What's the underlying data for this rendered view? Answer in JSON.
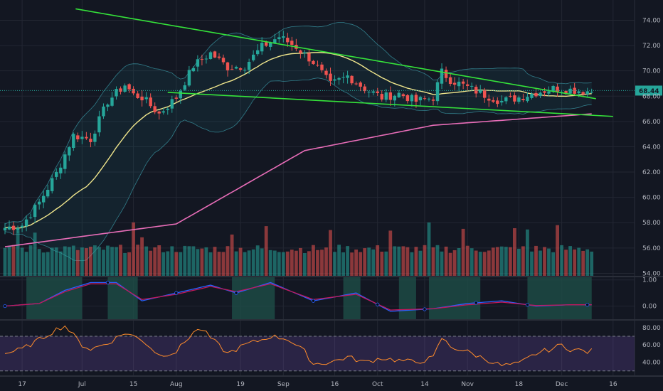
{
  "chart_data": [
    {
      "type": "candlestick",
      "panel": "price",
      "y_ticks": [
        "74.00",
        "72.00",
        "70.00",
        "68.00",
        "66.00",
        "64.00",
        "62.00",
        "60.00",
        "58.00",
        "56.00",
        "54.00"
      ],
      "y_tick_values": [
        74,
        72,
        70,
        68,
        66,
        64,
        62,
        60,
        58,
        56,
        54
      ],
      "ylim": [
        53.8,
        75.6
      ],
      "x_ticks": [
        "17",
        "Jul",
        "15",
        "Aug",
        "19",
        "Sep",
        "16",
        "Oct",
        "14",
        "Nov",
        "18",
        "Dec",
        "16"
      ],
      "x_tick_index": [
        4,
        18,
        30,
        40,
        55,
        65,
        77,
        87,
        98,
        108,
        120,
        130,
        142
      ],
      "last_price": "68.44",
      "last_price_value": 68.44,
      "grid": true,
      "ohlc_keypoints": {
        "index": [
          0,
          4,
          8,
          12,
          16,
          20,
          24,
          28,
          30,
          32,
          36,
          40,
          44,
          48,
          52,
          56,
          60,
          64,
          66,
          68,
          72,
          76,
          80,
          84,
          88,
          92,
          96,
          100,
          102,
          104,
          108,
          112,
          116,
          120,
          124,
          128,
          132,
          136
        ],
        "close": [
          57.6,
          57.8,
          59.6,
          61.9,
          64.9,
          64.6,
          67.6,
          68.9,
          68.1,
          67.9,
          66.6,
          67.9,
          70.4,
          71.4,
          70.3,
          70.4,
          71.9,
          72.7,
          72.3,
          71.9,
          70.7,
          68.9,
          69.6,
          68.6,
          67.9,
          68.2,
          67.6,
          67.9,
          69.9,
          69.3,
          68.7,
          68.1,
          67.6,
          67.9,
          68.3,
          68.6,
          68.5,
          68.4
        ]
      },
      "series": [
        {
          "name": "",
          "kind": "sma-short",
          "color": "#f0e68c"
        },
        {
          "name": "",
          "kind": "sma-long",
          "color": "#e86db8",
          "x": [
            0,
            40,
            70,
            100,
            137
          ],
          "y": [
            56.1,
            57.9,
            63.7,
            65.7,
            66.6
          ]
        }
      ],
      "annotations": {
        "trendline_color": "#35e33a",
        "upper_trendline": {
          "x": [
            16.5,
            138
          ],
          "y": [
            74.9,
            67.8
          ]
        },
        "lower_trendline": {
          "x": [
            38,
            142
          ],
          "y": [
            68.3,
            66.4
          ]
        }
      },
      "bollinger_color": "#3fa5b4"
    },
    {
      "type": "bar",
      "panel": "volume",
      "note_hidden": "",
      "colors": {
        "up": "#26a69a",
        "down": "#ef5350"
      }
    },
    {
      "type": "line",
      "panel": "oscillator",
      "y_ticks": [
        "1.00",
        "0.00"
      ],
      "y_tick_values": [
        1,
        0
      ],
      "ylim": [
        -0.5,
        1.1
      ],
      "series": [
        {
          "name": "",
          "color": "#2962ff",
          "x": [
            0,
            8,
            14,
            20,
            26,
            32,
            40,
            48,
            54,
            62,
            72,
            82,
            90,
            100,
            108,
            116,
            124,
            132,
            137
          ],
          "y": [
            0,
            0.1,
            0.6,
            0.9,
            0.9,
            0.2,
            0.5,
            0.8,
            0.5,
            0.9,
            0.2,
            0.5,
            -0.2,
            -0.1,
            0.1,
            0.2,
            0,
            0.05,
            0.05
          ]
        },
        {
          "name": "",
          "color": "#c2185b",
          "x": [
            0,
            8,
            14,
            20,
            26,
            32,
            40,
            48,
            54,
            62,
            72,
            82,
            90,
            100,
            108,
            116,
            124,
            132,
            137
          ],
          "y": [
            0,
            0.1,
            0.55,
            0.85,
            0.85,
            0.25,
            0.45,
            0.75,
            0.55,
            0.85,
            0.25,
            0.45,
            -0.15,
            -0.1,
            0.05,
            0.15,
            0.02,
            0.05,
            0.05
          ]
        }
      ],
      "shaded_bands_index": [
        [
          5,
          18
        ],
        [
          24,
          31
        ],
        [
          53,
          63
        ],
        [
          79,
          83
        ],
        [
          92,
          96
        ],
        [
          99,
          111
        ],
        [
          122,
          137
        ]
      ],
      "band_color": "#1e4d47"
    },
    {
      "type": "line",
      "panel": "rsi",
      "y_ticks": [
        "80.00",
        "60.00",
        "40.00"
      ],
      "y_tick_values": [
        80,
        60,
        40
      ],
      "ylim": [
        24,
        88
      ],
      "band": [
        30,
        70
      ],
      "series": [
        {
          "name": "",
          "color": "#ff8c2b",
          "x": [
            0,
            4,
            8,
            12,
            14,
            18,
            20,
            24,
            28,
            32,
            36,
            40,
            44,
            46,
            48,
            52,
            56,
            60,
            62,
            66,
            70,
            72,
            76,
            80,
            84,
            88,
            92,
            96,
            100,
            102,
            104,
            108,
            112,
            116,
            120,
            124,
            128,
            130,
            132,
            134,
            136,
            137
          ],
          "y": [
            50,
            55,
            66,
            78,
            82,
            60,
            55,
            62,
            74,
            66,
            48,
            52,
            75,
            78,
            68,
            50,
            60,
            66,
            70,
            67,
            52,
            38,
            40,
            46,
            40,
            45,
            42,
            40,
            45,
            68,
            58,
            52,
            44,
            36,
            38,
            50,
            56,
            60,
            55,
            54,
            52,
            53
          ]
        }
      ]
    }
  ]
}
